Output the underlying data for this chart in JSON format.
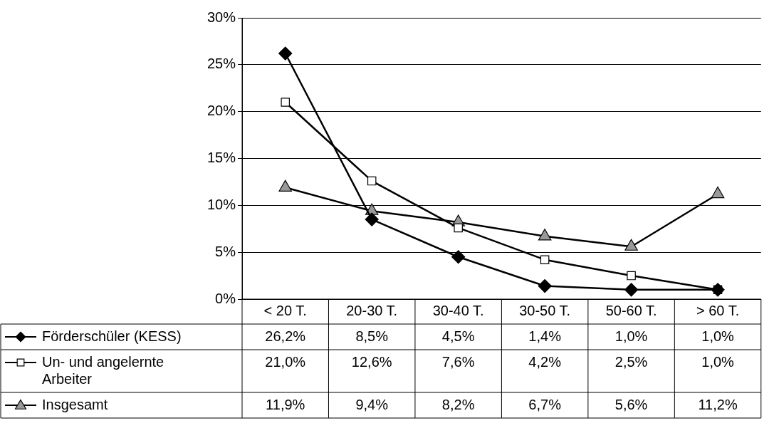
{
  "chart_data": {
    "type": "line",
    "categories": [
      "< 20 T.",
      "20-30 T.",
      "30-40 T.",
      "30-50 T.",
      "50-60 T.",
      "> 60 T."
    ],
    "series": [
      {
        "name": "Förderschüler (KESS)",
        "color": "#000000",
        "marker": "diamond",
        "values": [
          26.2,
          8.5,
          4.5,
          1.4,
          1.0,
          1.0
        ],
        "value_labels": [
          "26,2%",
          "8,5%",
          "4,5%",
          "1,4%",
          "1,0%",
          "1,0%"
        ]
      },
      {
        "name": "Un- und angelernte Arbeiter",
        "color": "#ffffff",
        "marker": "square",
        "values": [
          21.0,
          12.6,
          7.6,
          4.2,
          2.5,
          1.0
        ],
        "value_labels": [
          "21,0%",
          "12,6%",
          "7,6%",
          "4,2%",
          "2,5%",
          "1,0%"
        ]
      },
      {
        "name": "Insgesamt",
        "color": "#999999",
        "marker": "triangle",
        "values": [
          11.9,
          9.4,
          8.2,
          6.7,
          5.6,
          11.2
        ],
        "value_labels": [
          "11,9%",
          "9,4%",
          "8,2%",
          "6,7%",
          "5,6%",
          "11,2%"
        ]
      }
    ],
    "ylim": [
      0,
      30
    ],
    "yticks": [
      {
        "value": 0,
        "label": "0%"
      },
      {
        "value": 5,
        "label": "5%"
      },
      {
        "value": 10,
        "label": "10%"
      },
      {
        "value": 15,
        "label": "15%"
      },
      {
        "value": 20,
        "label": "20%"
      },
      {
        "value": 25,
        "label": "25%"
      },
      {
        "value": 30,
        "label": "30%"
      }
    ],
    "grid": "y",
    "legend": "bottom"
  }
}
